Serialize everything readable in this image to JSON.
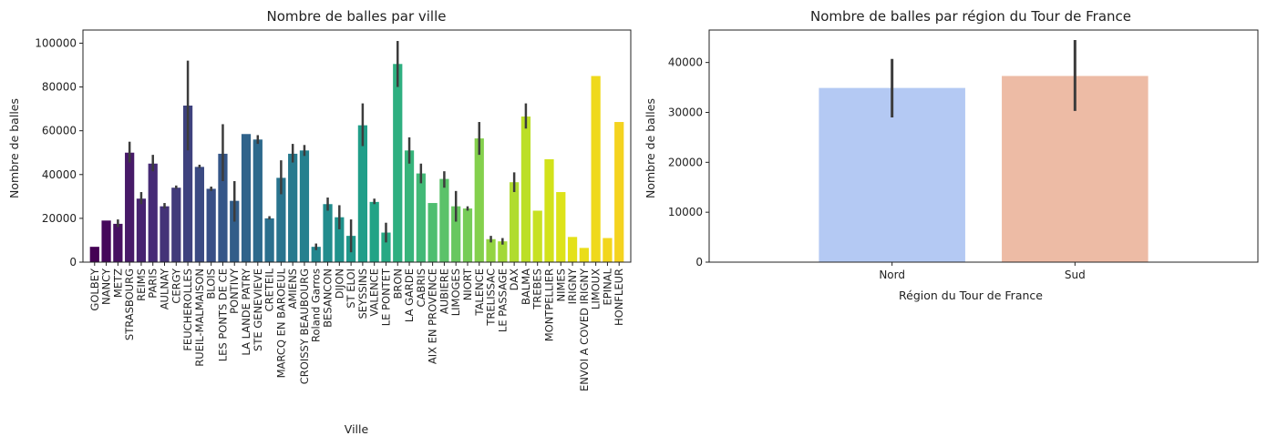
{
  "chart_data": [
    {
      "type": "bar",
      "title": "Nombre de balles par ville",
      "xlabel": "Ville",
      "ylabel": "Nombre de balles",
      "ylim": [
        0,
        106000
      ],
      "yticks": [
        0,
        20000,
        40000,
        60000,
        80000,
        100000
      ],
      "grid": false,
      "error_bars": true,
      "categories": [
        "GOLBEY",
        "NANCY",
        "METZ",
        "STRASBOURG",
        "REIMS",
        "PARIS",
        "AULNAY",
        "CERGY",
        "FEUCHEROLLES",
        "RUEIL-MALMAISON",
        "BLOIS",
        "LES PONTS DE CE",
        "PONTIVY",
        "LA LANDE PATRY",
        "STE GENEVIEVE",
        "CRETEIL",
        "MARCQ EN BAROEUL",
        "AMIENS",
        "CROISSY BEAUBOURG",
        "Roland Garros",
        "BESANCON",
        "DIJON",
        "ST ELOI",
        "SEYSSINS",
        "VALENCE",
        "LE PONTET",
        "BRON",
        "LA GARDE",
        "CABRIS",
        "AIX EN PROVENCE",
        "AUBIERE",
        "LIMOGES",
        "NIORT",
        "TALENCE",
        "TRELISSAC",
        "LE PASSAGE",
        "DAX",
        "BALMA",
        "TREBES",
        "MONTPELLIER",
        "NIMES",
        "IRIGNY",
        "ENVOI A COVED IRIGNY",
        "LIMOUX",
        "EPINAL",
        "HONFLEUR"
      ],
      "values": [
        7000,
        19000,
        17500,
        50000,
        29000,
        45000,
        25500,
        34000,
        71500,
        43500,
        33500,
        49500,
        28000,
        58500,
        56000,
        20000,
        38500,
        49500,
        51000,
        7000,
        26500,
        20500,
        12000,
        62500,
        27500,
        13500,
        90500,
        51000,
        40500,
        27000,
        38000,
        25500,
        24500,
        56500,
        10500,
        9500,
        36500,
        66500,
        23500,
        47000,
        32000,
        11500,
        6500,
        85000,
        11000,
        64000
      ],
      "err_low": [
        7000,
        19000,
        16000,
        45500,
        26500,
        41500,
        24500,
        33500,
        51000,
        43000,
        32500,
        37000,
        18500,
        58500,
        54000,
        19500,
        31000,
        45500,
        48500,
        5500,
        23500,
        15000,
        4500,
        53000,
        26500,
        9000,
        80000,
        45000,
        36000,
        27000,
        34000,
        18500,
        23500,
        49000,
        9000,
        8000,
        32000,
        61000,
        23500,
        47000,
        32000,
        11500,
        6500,
        85000,
        11000,
        64000
      ],
      "err_high": [
        7000,
        19000,
        19500,
        55000,
        32000,
        49000,
        27000,
        35000,
        92000,
        44500,
        34500,
        63000,
        37000,
        58500,
        58000,
        21000,
        46500,
        54000,
        53500,
        8500,
        29500,
        26000,
        19500,
        72500,
        29000,
        18000,
        101000,
        57000,
        45000,
        27000,
        41500,
        32500,
        25500,
        64000,
        12000,
        11000,
        41000,
        72500,
        23500,
        47000,
        32000,
        11500,
        6500,
        85000,
        11000,
        64000
      ],
      "colors": [
        "#440154",
        "#45085b",
        "#461161",
        "#471a68",
        "#472370",
        "#462b76",
        "#443378",
        "#413b7b",
        "#3e427e",
        "#3b4a82",
        "#384f86",
        "#355688",
        "#325d89",
        "#2f638b",
        "#2d698c",
        "#2b6f8d",
        "#29748e",
        "#277a8e",
        "#25808e",
        "#23868e",
        "#218c8d",
        "#20928c",
        "#1f988b",
        "#209e89",
        "#22a386",
        "#27a984",
        "#2eaf80",
        "#37b47b",
        "#42b977",
        "#4fbe70",
        "#5bc269",
        "#68c760",
        "#76cc57",
        "#84d04d",
        "#93d442",
        "#a2d838",
        "#b0dc2f",
        "#bcdf27",
        "#c7e123",
        "#d2e21b",
        "#dde31a",
        "#e4e119",
        "#eadd19",
        "#efd91b",
        "#f2d61d",
        "#f4d320"
      ]
    },
    {
      "type": "bar",
      "title": "Nombre de balles par région du Tour de France",
      "xlabel": "Région du Tour de France",
      "ylabel": "Nombre de balles",
      "ylim": [
        0,
        46500
      ],
      "yticks": [
        0,
        10000,
        20000,
        30000,
        40000
      ],
      "grid": false,
      "error_bars": true,
      "categories": [
        "Nord",
        "Sud"
      ],
      "values": [
        34900,
        37300
      ],
      "err_low": [
        29000,
        30300
      ],
      "err_high": [
        40700,
        44500
      ],
      "colors": [
        "#b4c9f3",
        "#edbba5"
      ]
    }
  ]
}
